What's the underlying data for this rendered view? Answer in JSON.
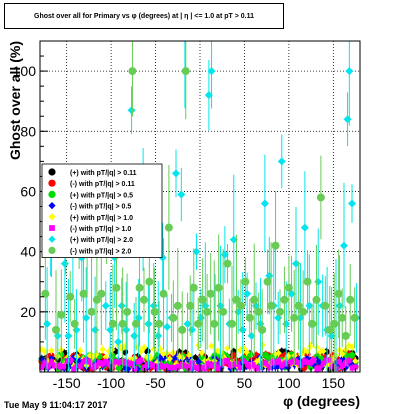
{
  "chart_data": {
    "type": "scatter",
    "title": "Ghost over all for Primary vs φ (degrees) at | η | <= 1.0 at pT > 0.11",
    "xlabel": "φ (degrees)",
    "ylabel": "Ghost over all (%)",
    "xlim": [
      -180,
      180
    ],
    "ylim": [
      0,
      110
    ],
    "xticks": [
      -150,
      -100,
      -50,
      0,
      50,
      100,
      150
    ],
    "yticks": [
      20,
      40,
      60,
      80,
      100
    ],
    "grid": true,
    "legend_position": "middle-left",
    "timestamp": "Tue May  9 11:04:17 2017",
    "series": [
      {
        "name": "(+) with pT/|q| > 0.11",
        "color": "#000000",
        "marker": "circle",
        "band": [
          1,
          7
        ]
      },
      {
        "name": "(-) with pT/|q| > 0.11",
        "color": "#ff0000",
        "marker": "circle",
        "band": [
          1,
          6
        ]
      },
      {
        "name": "(+) with pT/|q| > 0.5",
        "color": "#00dd00",
        "marker": "circle",
        "band": [
          1,
          6
        ]
      },
      {
        "name": "(-) with pT/|q| > 0.5",
        "color": "#0000ff",
        "marker": "diamond",
        "band": [
          1,
          5
        ]
      },
      {
        "name": "(+) with pT/|q| > 1.0",
        "color": "#ffff00",
        "marker": "diamond",
        "band": [
          2,
          9
        ]
      },
      {
        "name": "(-) with pT/|q| > 1.0",
        "color": "#ff00ff",
        "marker": "square",
        "band": [
          1,
          4
        ]
      },
      {
        "name": "(+) with pT/|q| > 2.0",
        "color": "#00e5ee",
        "marker": "diamond",
        "points": [
          [
            -172,
            16
          ],
          [
            -168,
            40
          ],
          [
            -160,
            12
          ],
          [
            -152,
            36
          ],
          [
            -148,
            12
          ],
          [
            -143,
            44
          ],
          [
            -139,
            14
          ],
          [
            -133,
            38
          ],
          [
            -128,
            18
          ],
          [
            -122,
            44
          ],
          [
            -118,
            14
          ],
          [
            -112,
            60
          ],
          [
            -106,
            22
          ],
          [
            -101,
            14
          ],
          [
            -96,
            38
          ],
          [
            -92,
            10
          ],
          [
            -88,
            22
          ],
          [
            -83,
            14
          ],
          [
            -77,
            87
          ],
          [
            -74,
            12
          ],
          [
            -69,
            18
          ],
          [
            -64,
            54
          ],
          [
            -58,
            16
          ],
          [
            -52,
            22
          ],
          [
            -47,
            12
          ],
          [
            -42,
            38
          ],
          [
            -37,
            15
          ],
          [
            -32,
            18
          ],
          [
            -27,
            66
          ],
          [
            -21,
            59
          ],
          [
            -17,
            100
          ],
          [
            -14,
            16
          ],
          [
            -9,
            14
          ],
          [
            -4,
            40
          ],
          [
            1,
            18
          ],
          [
            6,
            22
          ],
          [
            10,
            92
          ],
          [
            13,
            100
          ],
          [
            17,
            16
          ],
          [
            23,
            22
          ],
          [
            28,
            39
          ],
          [
            33,
            16
          ],
          [
            38,
            44
          ],
          [
            43,
            20
          ],
          [
            48,
            14
          ],
          [
            53,
            26
          ],
          [
            58,
            12
          ],
          [
            63,
            22
          ],
          [
            68,
            16
          ],
          [
            73,
            56
          ],
          [
            78,
            32
          ],
          [
            83,
            22
          ],
          [
            88,
            18
          ],
          [
            92,
            70
          ],
          [
            97,
            16
          ],
          [
            103,
            26
          ],
          [
            108,
            36
          ],
          [
            113,
            18
          ],
          [
            118,
            48
          ],
          [
            123,
            22
          ],
          [
            128,
            16
          ],
          [
            133,
            30
          ],
          [
            138,
            22
          ],
          [
            143,
            14
          ],
          [
            148,
            12
          ],
          [
            153,
            16
          ],
          [
            157,
            22
          ],
          [
            162,
            42
          ],
          [
            166,
            84
          ],
          [
            168,
            100
          ],
          [
            171,
            56
          ],
          [
            176,
            18
          ]
        ]
      },
      {
        "name": "(-) with pT/|q| > 2.0",
        "color": "#66cc55",
        "marker": "circle",
        "points": [
          [
            -174,
            26
          ],
          [
            -167,
            43
          ],
          [
            -162,
            14
          ],
          [
            -156,
            19
          ],
          [
            -151,
            43
          ],
          [
            -146,
            25
          ],
          [
            -141,
            16
          ],
          [
            -136,
            45
          ],
          [
            -131,
            26
          ],
          [
            -127,
            42
          ],
          [
            -122,
            20
          ],
          [
            -116,
            24
          ],
          [
            -111,
            26
          ],
          [
            -105,
            44
          ],
          [
            -98,
            16
          ],
          [
            -94,
            28
          ],
          [
            -87,
            16
          ],
          [
            -82,
            20
          ],
          [
            -76,
            100
          ],
          [
            -72,
            16
          ],
          [
            -68,
            28
          ],
          [
            -63,
            24
          ],
          [
            -57,
            30
          ],
          [
            -51,
            20
          ],
          [
            -46,
            16
          ],
          [
            -41,
            26
          ],
          [
            -35,
            48
          ],
          [
            -30,
            18
          ],
          [
            -25,
            22
          ],
          [
            -20,
            14
          ],
          [
            -16,
            100
          ],
          [
            -11,
            22
          ],
          [
            -7,
            28
          ],
          [
            -2,
            16
          ],
          [
            3,
            24
          ],
          [
            8,
            20
          ],
          [
            12,
            26
          ],
          [
            16,
            16
          ],
          [
            21,
            28
          ],
          [
            26,
            20
          ],
          [
            31,
            36
          ],
          [
            36,
            16
          ],
          [
            41,
            24
          ],
          [
            46,
            22
          ],
          [
            51,
            30
          ],
          [
            56,
            18
          ],
          [
            61,
            24
          ],
          [
            66,
            20
          ],
          [
            70,
            14
          ],
          [
            76,
            30
          ],
          [
            80,
            22
          ],
          [
            85,
            42
          ],
          [
            90,
            20
          ],
          [
            95,
            24
          ],
          [
            100,
            28
          ],
          [
            106,
            18
          ],
          [
            111,
            22
          ],
          [
            116,
            20
          ],
          [
            121,
            30
          ],
          [
            126,
            16
          ],
          [
            131,
            24
          ],
          [
            136,
            58
          ],
          [
            141,
            22
          ],
          [
            146,
            14
          ],
          [
            151,
            16
          ],
          [
            156,
            26
          ],
          [
            160,
            18
          ],
          [
            164,
            12
          ],
          [
            169,
            24
          ],
          [
            174,
            18
          ]
        ]
      }
    ]
  }
}
